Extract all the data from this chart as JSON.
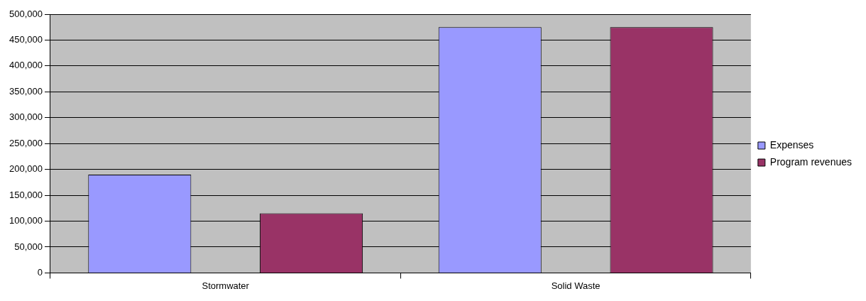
{
  "chart_data": {
    "type": "bar",
    "categories": [
      "Stormwater",
      "Solid Waste"
    ],
    "series": [
      {
        "name": "Expenses",
        "color": "#9999ff",
        "values": [
          190000,
          475000
        ]
      },
      {
        "name": "Program revenues",
        "color": "#993366",
        "values": [
          115000,
          475000
        ]
      }
    ],
    "ylim": [
      0,
      500000
    ],
    "yticks": [
      {
        "value": 0,
        "label": "0"
      },
      {
        "value": 50000,
        "label": "50,000"
      },
      {
        "value": 100000,
        "label": "100,000"
      },
      {
        "value": 150000,
        "label": "150,000"
      },
      {
        "value": 200000,
        "label": "200,000"
      },
      {
        "value": 250000,
        "label": "250,000"
      },
      {
        "value": 300000,
        "label": "300,000"
      },
      {
        "value": 350000,
        "label": "350,000"
      },
      {
        "value": 400000,
        "label": "400,000"
      },
      {
        "value": 450000,
        "label": "450,000"
      },
      {
        "value": 500000,
        "label": "500,000"
      }
    ],
    "grid": "y",
    "legend": "right"
  }
}
